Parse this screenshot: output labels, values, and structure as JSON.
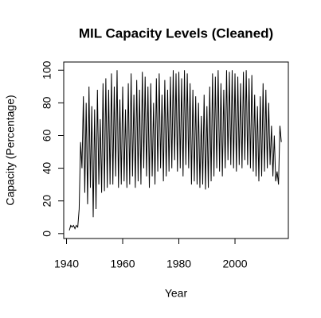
{
  "chart_data": {
    "type": "line",
    "title": "MIL Capacity Levels (Cleaned)",
    "x_label": "Year",
    "y_label": "Capacity (Percentage)",
    "xlim": [
      1939,
      2019
    ],
    "ylim": [
      -3,
      105
    ],
    "xticks": [
      1940,
      1960,
      1980,
      2000
    ],
    "yticks": [
      0,
      20,
      40,
      60,
      80,
      100
    ],
    "x": [
      1941,
      1941.5,
      1942,
      1942.5,
      1943,
      1943.5,
      1944,
      1944.5,
      1945,
      1945.5,
      1946,
      1946.5,
      1947,
      1947.5,
      1948,
      1948.5,
      1949,
      1949.5,
      1950,
      1950.5,
      1951,
      1951.5,
      1952,
      1952.5,
      1953,
      1953.5,
      1954,
      1954.5,
      1955,
      1955.5,
      1956,
      1956.5,
      1957,
      1957.5,
      1958,
      1958.5,
      1959,
      1959.5,
      1960,
      1960.5,
      1961,
      1961.5,
      1962,
      1962.5,
      1963,
      1963.5,
      1964,
      1964.5,
      1965,
      1965.5,
      1966,
      1966.5,
      1967,
      1967.5,
      1968,
      1968.5,
      1969,
      1969.5,
      1970,
      1970.5,
      1971,
      1971.5,
      1972,
      1972.5,
      1973,
      1973.5,
      1974,
      1974.5,
      1975,
      1975.5,
      1976,
      1976.5,
      1977,
      1977.5,
      1978,
      1978.5,
      1979,
      1979.5,
      1980,
      1980.5,
      1981,
      1981.5,
      1982,
      1982.5,
      1983,
      1983.5,
      1984,
      1984.5,
      1985,
      1985.5,
      1986,
      1986.5,
      1987,
      1987.5,
      1988,
      1988.5,
      1989,
      1989.5,
      1990,
      1990.5,
      1991,
      1991.5,
      1992,
      1992.5,
      1993,
      1993.5,
      1994,
      1994.5,
      1995,
      1995.5,
      1996,
      1996.5,
      1997,
      1997.5,
      1998,
      1998.5,
      1999,
      1999.5,
      2000,
      2000.5,
      2001,
      2001.5,
      2002,
      2002.5,
      2003,
      2003.5,
      2004,
      2004.5,
      2005,
      2005.5,
      2006,
      2006.5,
      2007,
      2007.5,
      2008,
      2008.5,
      2009,
      2009.5,
      2010,
      2010.5,
      2011,
      2011.5,
      2012,
      2012.5,
      2013,
      2013.5,
      2014,
      2014.5,
      2015,
      2015.5,
      2016,
      2016.5
    ],
    "series": [
      {
        "name": "Capacity",
        "color": "#000000",
        "values": [
          2,
          5,
          4,
          5,
          3,
          5,
          4,
          15,
          56,
          40,
          84,
          25,
          80,
          18,
          90,
          28,
          78,
          10,
          76,
          15,
          88,
          30,
          70,
          25,
          92,
          26,
          95,
          28,
          88,
          30,
          98,
          30,
          90,
          35,
          100,
          28,
          82,
          30,
          90,
          32,
          76,
          28,
          92,
          30,
          98,
          35,
          85,
          28,
          94,
          32,
          88,
          30,
          99,
          40,
          96,
          35,
          90,
          28,
          92,
          35,
          80,
          30,
          95,
          38,
          98,
          40,
          85,
          32,
          94,
          35,
          88,
          38,
          96,
          40,
          100,
          45,
          98,
          38,
          99,
          40,
          95,
          35,
          100,
          42,
          98,
          40,
          92,
          30,
          88,
          32,
          84,
          30,
          80,
          28,
          72,
          30,
          85,
          27,
          78,
          28,
          90,
          32,
          98,
          35,
          96,
          40,
          100,
          38,
          92,
          35,
          88,
          40,
          100,
          45,
          99,
          42,
          100,
          40,
          98,
          38,
          96,
          42,
          92,
          40,
          99,
          45,
          100,
          42,
          95,
          40,
          97,
          38,
          85,
          35,
          78,
          32,
          84,
          35,
          92,
          38,
          88,
          40,
          80,
          42,
          66,
          35,
          60,
          32,
          38,
          30,
          66,
          56
        ]
      }
    ]
  }
}
